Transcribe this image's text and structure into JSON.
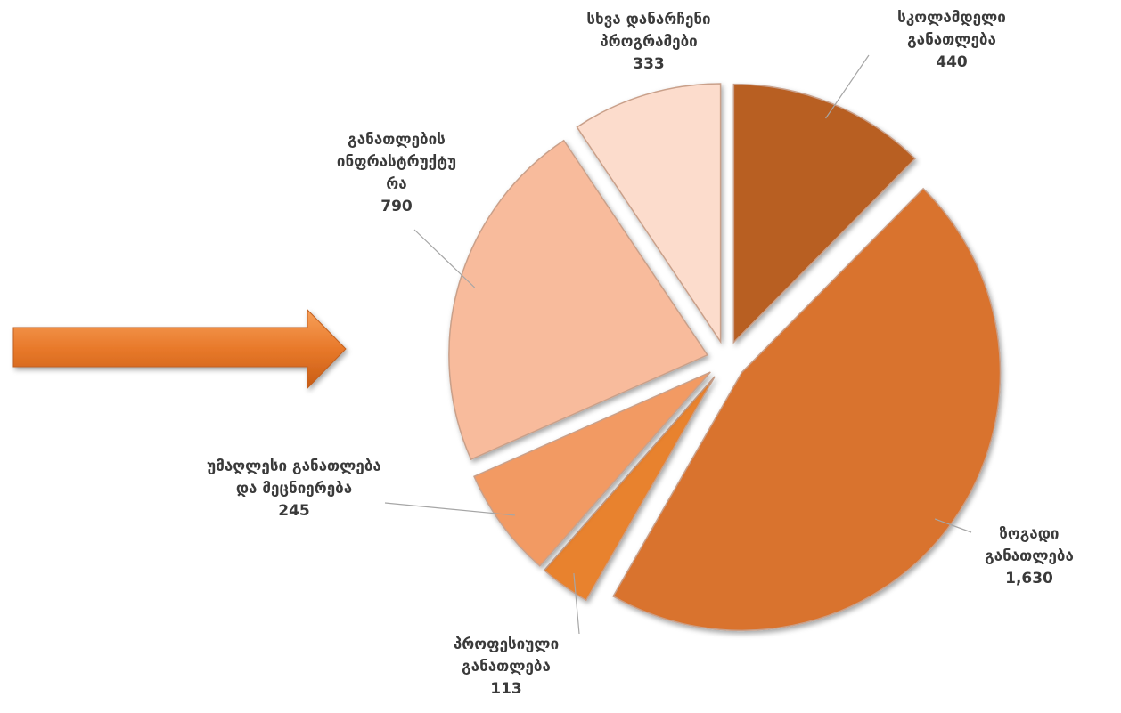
{
  "chart_data": {
    "type": "pie",
    "categories": [
      "სკოლამდელი განათლება",
      "ზოგადი განათლება",
      "პროფესიული განათლება",
      "უმაღლესი განათლება და მეცნიერება",
      "განათლების ინფრასტრუქტურა",
      "სხვა დანარჩენი პროგრამები"
    ],
    "values": [
      440,
      1630,
      113,
      245,
      790,
      333
    ],
    "value_labels": [
      "440",
      "1,630",
      "113",
      "245",
      "790",
      "333"
    ],
    "colors": [
      "#b85e24",
      "#d9732f",
      "#e8822f",
      "#f29a64",
      "#f8bb9c",
      "#fcdccc"
    ]
  }
}
